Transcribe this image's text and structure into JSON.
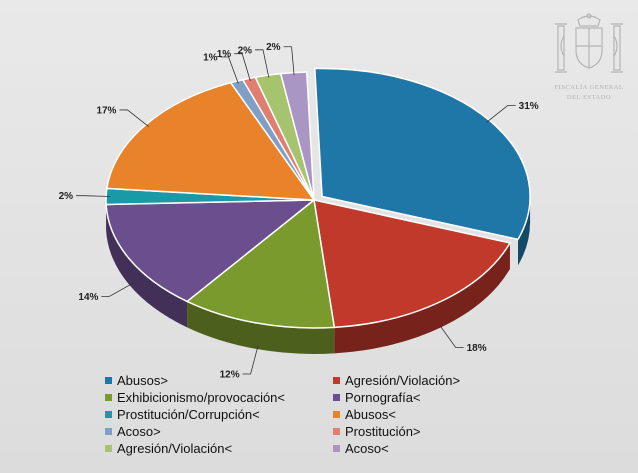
{
  "emblem": {
    "line1": "FISCALÍA GENERAL",
    "line2": "DEL ESTADO"
  },
  "chart_data": {
    "type": "pie",
    "title": "",
    "slices": [
      {
        "category": "Abusos>",
        "value": 31,
        "label": "31%",
        "color": "#1f77a8"
      },
      {
        "category": "Agresión/Violación>",
        "value": 18,
        "label": "18%",
        "color": "#c0392b"
      },
      {
        "category": "Exhibicionismo/provocación<",
        "value": 12,
        "label": "12%",
        "color": "#7a9a2e"
      },
      {
        "category": "Pornografía<",
        "value": 14,
        "label": "14%",
        "color": "#6b4e8e"
      },
      {
        "category": "Prostitución/Corrupción<",
        "value": 2,
        "label": "2%",
        "color": "#1a9aa6"
      },
      {
        "category": "Abusos<",
        "value": 17,
        "label": "17%",
        "color": "#e8832b"
      },
      {
        "category": "Acoso>",
        "value": 1,
        "label": "1%",
        "color": "#7f9fc6"
      },
      {
        "category": "Prostitución>",
        "value": 1,
        "label": "1%",
        "color": "#e07f70"
      },
      {
        "category": "Agresión/Violación<",
        "value": 2,
        "label": "2%",
        "color": "#a6c46d"
      },
      {
        "category": "Acoso<",
        "value": 2,
        "label": "2%",
        "color": "#a996c4"
      }
    ],
    "legend": {
      "placement": "bottom",
      "rows": [
        [
          "Abusos>",
          "Agresión/Violación>"
        ],
        [
          "Exhibicionismo/provocación<",
          "Pornografía<"
        ],
        [
          "Prostitución/Corrupción<",
          "Abusos<"
        ],
        [
          "Acoso>",
          "Prostitución>"
        ],
        [
          "Agresión/Violación<",
          "Acoso<"
        ]
      ]
    }
  }
}
